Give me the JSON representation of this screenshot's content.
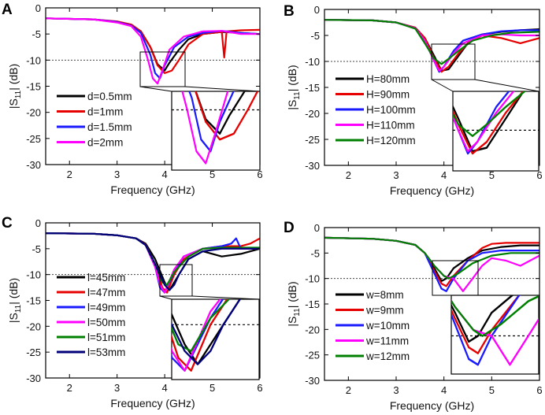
{
  "figure": {
    "description": "Four-panel figure of reflection coefficient versus frequency"
  },
  "chart_data": [
    {
      "type": "line",
      "panel": "A",
      "xlabel": "Frequency (GHz)",
      "ylabel_main": "|S",
      "ylabel_sub": "11",
      "ylabel_tail": "| (dB)",
      "xlim": [
        1.5,
        6
      ],
      "ylim": [
        -30,
        0
      ],
      "xticks": [
        2,
        3,
        4,
        5,
        6
      ],
      "yticks": [
        0,
        -5,
        -10,
        -15,
        -20,
        -25,
        -30
      ],
      "reference_line_db": -10,
      "legend": "lower-left",
      "series": [
        {
          "name": "d=0.5mm",
          "color": "#000000",
          "x": [
            1.5,
            2.5,
            3.0,
            3.3,
            3.5,
            3.7,
            3.85,
            4.0,
            4.1,
            4.3,
            4.5,
            4.8,
            5.2,
            5.6,
            6.0
          ],
          "y": [
            -2,
            -2.2,
            -2.7,
            -3.3,
            -4.5,
            -7.5,
            -10.8,
            -12,
            -10.5,
            -8,
            -6,
            -5,
            -4.6,
            -4.8,
            -5
          ]
        },
        {
          "name": "d=1mm",
          "color": "#e60000",
          "x": [
            1.5,
            2.5,
            3.0,
            3.3,
            3.5,
            3.7,
            3.85,
            4.0,
            4.15,
            4.3,
            4.5,
            4.8,
            5.2,
            5.25,
            5.3,
            5.6,
            6.0
          ],
          "y": [
            -2,
            -2.2,
            -2.6,
            -3.2,
            -4.5,
            -7.5,
            -11,
            -12.5,
            -12,
            -10,
            -7,
            -5,
            -4.6,
            -9.5,
            -4.5,
            -4.3,
            -4.2
          ]
        },
        {
          "name": "d=1.5mm",
          "color": "#1a1aff",
          "x": [
            1.5,
            2.5,
            3.0,
            3.3,
            3.5,
            3.7,
            3.8,
            3.9,
            4.0,
            4.2,
            4.5,
            4.8,
            5.2,
            5.6,
            6.0
          ],
          "y": [
            -2,
            -2.2,
            -2.7,
            -3.4,
            -4.8,
            -9,
            -12.5,
            -13.5,
            -11,
            -7.5,
            -5.5,
            -4.8,
            -4.4,
            -4.8,
            -5
          ]
        },
        {
          "name": "d=2mm",
          "color": "#ff00ff",
          "x": [
            1.5,
            2.5,
            3.0,
            3.3,
            3.5,
            3.65,
            3.75,
            3.85,
            3.95,
            4.1,
            4.4,
            4.8,
            5.2,
            5.6,
            6.0
          ],
          "y": [
            -2,
            -2.2,
            -2.8,
            -3.5,
            -5.5,
            -10,
            -13.5,
            -14.5,
            -12,
            -8,
            -5.5,
            -4.5,
            -4.4,
            -5,
            -5
          ]
        }
      ]
    },
    {
      "type": "line",
      "panel": "B",
      "xlabel": "Frequency (GHz)",
      "ylabel_main": "|S",
      "ylabel_sub": "11",
      "ylabel_tail": "| (dB)",
      "xlim": [
        1.5,
        6
      ],
      "ylim": [
        -30,
        0
      ],
      "xticks": [
        2,
        3,
        4,
        5,
        6
      ],
      "yticks": [
        0,
        -5,
        -10,
        -15,
        -20,
        -25,
        -30
      ],
      "reference_line_db": -10,
      "legend": "lower-left",
      "series": [
        {
          "name": "H=80mm",
          "color": "#000000",
          "x": [
            1.5,
            2.5,
            3.0,
            3.4,
            3.6,
            3.8,
            3.95,
            4.1,
            4.3,
            4.5,
            4.8,
            5.2,
            5.6,
            6.0
          ],
          "y": [
            -2,
            -2.1,
            -2.5,
            -3.5,
            -5.5,
            -9,
            -11.8,
            -11.5,
            -9,
            -6.5,
            -4.8,
            -4.3,
            -4,
            -3.8
          ]
        },
        {
          "name": "H=90mm",
          "color": "#e60000",
          "x": [
            1.5,
            2.5,
            3.0,
            3.4,
            3.6,
            3.8,
            3.95,
            4.1,
            4.3,
            4.5,
            4.8,
            5.2,
            5.6,
            6.0
          ],
          "y": [
            -2,
            -2.1,
            -2.5,
            -3.5,
            -5.5,
            -9.5,
            -12,
            -11,
            -8.5,
            -6.5,
            -5,
            -5.5,
            -6.5,
            -5.5
          ]
        },
        {
          "name": "H=100mm",
          "color": "#1a1aff",
          "x": [
            1.5,
            2.5,
            3.0,
            3.4,
            3.6,
            3.8,
            3.9,
            4.0,
            4.2,
            4.4,
            4.8,
            5.2,
            5.6,
            6.0
          ],
          "y": [
            -2,
            -2.1,
            -2.5,
            -3.6,
            -6,
            -10,
            -12,
            -11,
            -8,
            -6,
            -4.8,
            -4.2,
            -4,
            -4
          ]
        },
        {
          "name": "H=110mm",
          "color": "#ff00ff",
          "x": [
            1.5,
            2.5,
            3.0,
            3.4,
            3.6,
            3.8,
            3.9,
            4.0,
            4.2,
            4.4,
            4.8,
            5.2,
            5.6,
            6.0
          ],
          "y": [
            -2,
            -2.1,
            -2.5,
            -3.6,
            -6,
            -10,
            -11.8,
            -11,
            -8.5,
            -6.5,
            -5,
            -4.8,
            -5,
            -5
          ]
        },
        {
          "name": "H=120mm",
          "color": "#008000",
          "x": [
            1.5,
            2.5,
            3.0,
            3.4,
            3.6,
            3.8,
            3.95,
            4.1,
            4.3,
            4.6,
            5.0,
            5.4,
            6.0
          ],
          "y": [
            -2,
            -2.1,
            -2.5,
            -3.7,
            -6.5,
            -9.5,
            -10.5,
            -9.5,
            -8,
            -6,
            -5,
            -4.5,
            -4.3
          ]
        }
      ]
    },
    {
      "type": "line",
      "panel": "C",
      "xlabel": "Frequency (GHz)",
      "ylabel_main": "|S",
      "ylabel_sub": "11",
      "ylabel_tail": "| (dB)",
      "xlim": [
        1.5,
        6
      ],
      "ylim": [
        -30,
        0
      ],
      "xticks": [
        2,
        3,
        4,
        5,
        6
      ],
      "yticks": [
        0,
        -5,
        -10,
        -15,
        -20,
        -25,
        -30
      ],
      "reference_line_db": -10,
      "legend": "lower-left",
      "series": [
        {
          "name": "l=45mm",
          "color": "#000000",
          "x": [
            1.5,
            2.5,
            3.0,
            3.4,
            3.6,
            3.8,
            4.0,
            4.1,
            4.3,
            4.5,
            4.8,
            5.2,
            5.6,
            6.0
          ],
          "y": [
            -2,
            -2.1,
            -2.4,
            -3,
            -4,
            -7,
            -11.5,
            -13,
            -10,
            -7,
            -5.5,
            -6.5,
            -6,
            -5
          ]
        },
        {
          "name": "l=47mm",
          "color": "#e60000",
          "x": [
            1.5,
            2.5,
            3.0,
            3.4,
            3.6,
            3.8,
            3.95,
            4.05,
            4.2,
            4.4,
            4.8,
            5.2,
            5.6,
            5.8,
            6.0
          ],
          "y": [
            -2,
            -2.1,
            -2.4,
            -3,
            -4.2,
            -8,
            -12.5,
            -13.5,
            -10,
            -7,
            -5,
            -4.5,
            -4.5,
            -4,
            -3
          ]
        },
        {
          "name": "l=49mm",
          "color": "#1a1aff",
          "x": [
            1.5,
            2.5,
            3.0,
            3.4,
            3.6,
            3.8,
            3.9,
            4.0,
            4.2,
            4.4,
            4.8,
            5.2,
            5.4,
            5.5,
            5.6,
            6.0
          ],
          "y": [
            -2,
            -2.1,
            -2.4,
            -3,
            -4.3,
            -8.5,
            -12.5,
            -13.5,
            -9.5,
            -6.5,
            -5,
            -4.5,
            -4,
            -3,
            -5,
            -4.8
          ]
        },
        {
          "name": "l=50mm",
          "color": "#ff00ff",
          "x": [
            1.5,
            2.5,
            3.0,
            3.4,
            3.6,
            3.8,
            3.9,
            4.0,
            4.2,
            4.4,
            4.8,
            5.2,
            5.6,
            6.0
          ],
          "y": [
            -2,
            -2.1,
            -2.4,
            -3,
            -4.3,
            -8.5,
            -12,
            -13.5,
            -9,
            -6.5,
            -5,
            -4.8,
            -5,
            -5
          ]
        },
        {
          "name": "l=51mm",
          "color": "#008000",
          "x": [
            1.5,
            2.5,
            3.0,
            3.4,
            3.6,
            3.8,
            3.95,
            4.05,
            4.2,
            4.5,
            4.8,
            5.2,
            5.6,
            6.0
          ],
          "y": [
            -2,
            -2.1,
            -2.4,
            -3,
            -4.3,
            -8,
            -11.5,
            -12,
            -9.5,
            -6.5,
            -5,
            -4.8,
            -4.8,
            -4.8
          ]
        },
        {
          "name": "l=53mm",
          "color": "#00007a",
          "x": [
            1.5,
            2.5,
            3.0,
            3.4,
            3.6,
            3.8,
            4.0,
            4.1,
            4.2,
            4.3,
            4.5,
            4.8,
            5.2,
            5.6,
            6.0
          ],
          "y": [
            -2,
            -2.1,
            -2.4,
            -3,
            -4.3,
            -8,
            -12,
            -13,
            -12,
            -10,
            -7,
            -5.5,
            -5,
            -5,
            -5
          ]
        }
      ]
    },
    {
      "type": "line",
      "panel": "D",
      "xlabel": "Frequency (GHz)",
      "ylabel_main": "|S",
      "ylabel_sub": "11",
      "ylabel_tail": "| (dB)",
      "xlim": [
        1.5,
        6
      ],
      "ylim": [
        -30,
        0
      ],
      "xticks": [
        2,
        3,
        4,
        5,
        6
      ],
      "yticks": [
        0,
        -5,
        -10,
        -15,
        -20,
        -25,
        -30
      ],
      "reference_line_db": -10,
      "legend": "lower-left",
      "series": [
        {
          "name": "w=8mm",
          "color": "#000000",
          "x": [
            1.5,
            2.5,
            3.0,
            3.4,
            3.6,
            3.8,
            3.95,
            4.05,
            4.2,
            4.5,
            4.8,
            5.2,
            5.6,
            6.0
          ],
          "y": [
            -2,
            -2.2,
            -2.6,
            -3.4,
            -5,
            -8,
            -10.5,
            -10,
            -8,
            -6,
            -4.5,
            -3.8,
            -3.5,
            -3.5
          ]
        },
        {
          "name": "w=9mm",
          "color": "#e60000",
          "x": [
            1.5,
            2.5,
            3.0,
            3.4,
            3.6,
            3.8,
            3.95,
            4.05,
            4.2,
            4.5,
            4.8,
            5.0,
            5.3,
            5.6,
            6.0
          ],
          "y": [
            -2,
            -2.2,
            -2.6,
            -3.4,
            -5,
            -8.5,
            -11,
            -11.5,
            -9.5,
            -6.5,
            -4,
            -3.2,
            -3,
            -3,
            -3
          ]
        },
        {
          "name": "w=10mm",
          "color": "#1a1aff",
          "x": [
            1.5,
            2.5,
            3.0,
            3.4,
            3.6,
            3.8,
            3.95,
            4.05,
            4.2,
            4.5,
            4.8,
            5.2,
            5.6,
            6.0
          ],
          "y": [
            -2,
            -2.2,
            -2.6,
            -3.4,
            -5,
            -9,
            -12,
            -12.5,
            -10,
            -6.5,
            -5,
            -4.5,
            -4.5,
            -4.5
          ]
        },
        {
          "name": "w=11mm",
          "color": "#ff00ff",
          "x": [
            1.5,
            2.5,
            3.0,
            3.4,
            3.6,
            3.8,
            4.0,
            4.2,
            4.4,
            4.6,
            4.8,
            5.0,
            5.3,
            5.6,
            6.0
          ],
          "y": [
            -2,
            -2.2,
            -2.6,
            -3.4,
            -5,
            -7.5,
            -9.5,
            -10,
            -12.5,
            -10,
            -7.5,
            -6,
            -6.5,
            -7.5,
            -5.5
          ]
        },
        {
          "name": "w=12mm",
          "color": "#008000",
          "x": [
            1.5,
            2.5,
            3.0,
            3.4,
            3.6,
            3.8,
            4.0,
            4.1,
            4.3,
            4.6,
            5.0,
            5.4,
            6.0
          ],
          "y": [
            -2,
            -2.2,
            -2.6,
            -3.4,
            -5,
            -7.5,
            -9.5,
            -10,
            -9,
            -7,
            -5.5,
            -5,
            -5
          ]
        }
      ]
    }
  ]
}
